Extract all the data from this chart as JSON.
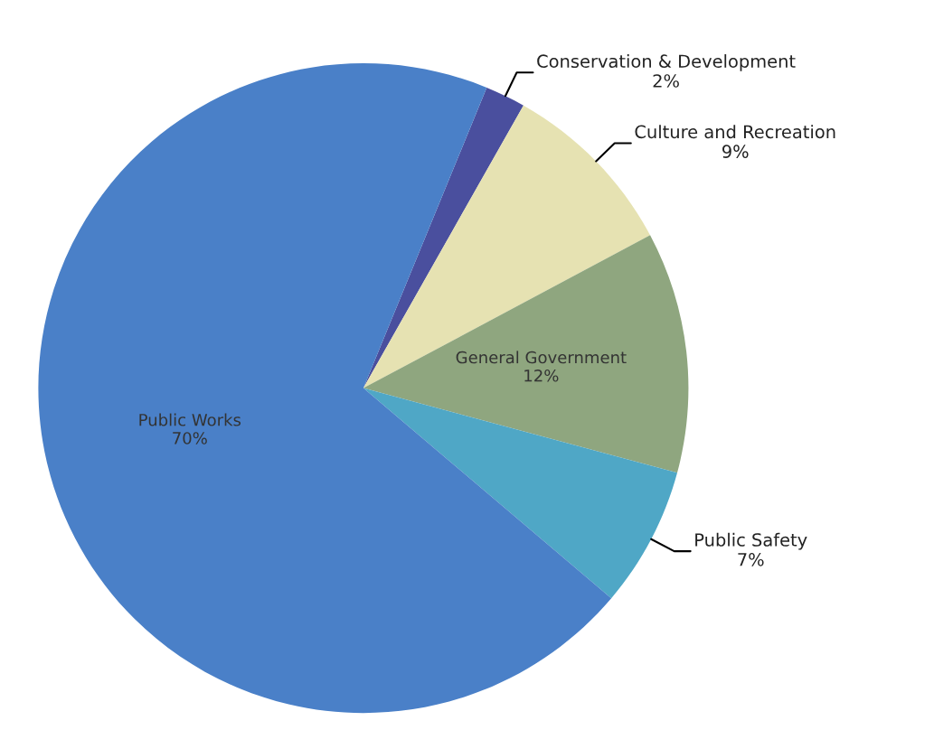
{
  "chart_data": {
    "type": "pie",
    "categories": [
      "Conservation & Development",
      "Culture and Recreation",
      "General Government",
      "Public Safety",
      "Public Works"
    ],
    "values": [
      2,
      9,
      12,
      7,
      70
    ],
    "value_labels": [
      "2%",
      "9%",
      "12%",
      "7%",
      "70%"
    ],
    "colors": [
      "#4a4f9e",
      "#e6e2b2",
      "#8fa67f",
      "#4fa7c6",
      "#4a80c8"
    ]
  }
}
